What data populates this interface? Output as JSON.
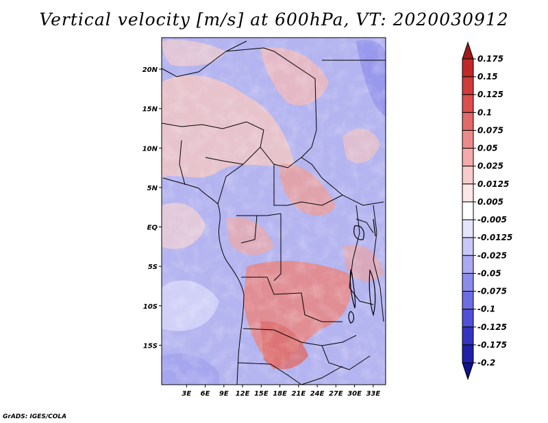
{
  "title": "Vertical velocity [m/s] at 600hPa, VT: 2020030912",
  "credit": "GrADS: IGES/COLA",
  "map": {
    "lon_range": [
      -1,
      35
    ],
    "lat_range": [
      -20,
      24
    ],
    "lat_ticks": [
      "20N",
      "15N",
      "10N",
      "5N",
      "EQ",
      "5S",
      "10S",
      "15S"
    ],
    "lat_values": [
      20,
      15,
      10,
      5,
      0,
      -5,
      -10,
      -15
    ],
    "lon_ticks": [
      "3E",
      "6E",
      "9E",
      "12E",
      "15E",
      "18E",
      "21E",
      "24E",
      "27E",
      "30E",
      "33E"
    ],
    "lon_values": [
      3,
      6,
      9,
      12,
      15,
      18,
      21,
      24,
      27,
      30,
      33
    ]
  },
  "colorbar": {
    "labels": [
      "0.175",
      "0.15",
      "0.125",
      "0.1",
      "0.075",
      "0.05",
      "0.025",
      "0.0125",
      "0.005",
      "-0.005",
      "-0.0125",
      "-0.025",
      "-0.05",
      "-0.075",
      "-0.1",
      "-0.125",
      "-0.175",
      "-0.2"
    ],
    "colors": [
      "#a01818",
      "#c02828",
      "#d03a3a",
      "#dc4e4e",
      "#e46a6a",
      "#ec8a8a",
      "#f4aaaa",
      "#f8cccc",
      "#fce6e6",
      "#ffffff",
      "#e4e4fc",
      "#c8c8f8",
      "#aaaaf2",
      "#8c8cec",
      "#6e6ee4",
      "#5050d8",
      "#3434c4",
      "#2020a8",
      "#10108c"
    ]
  }
}
